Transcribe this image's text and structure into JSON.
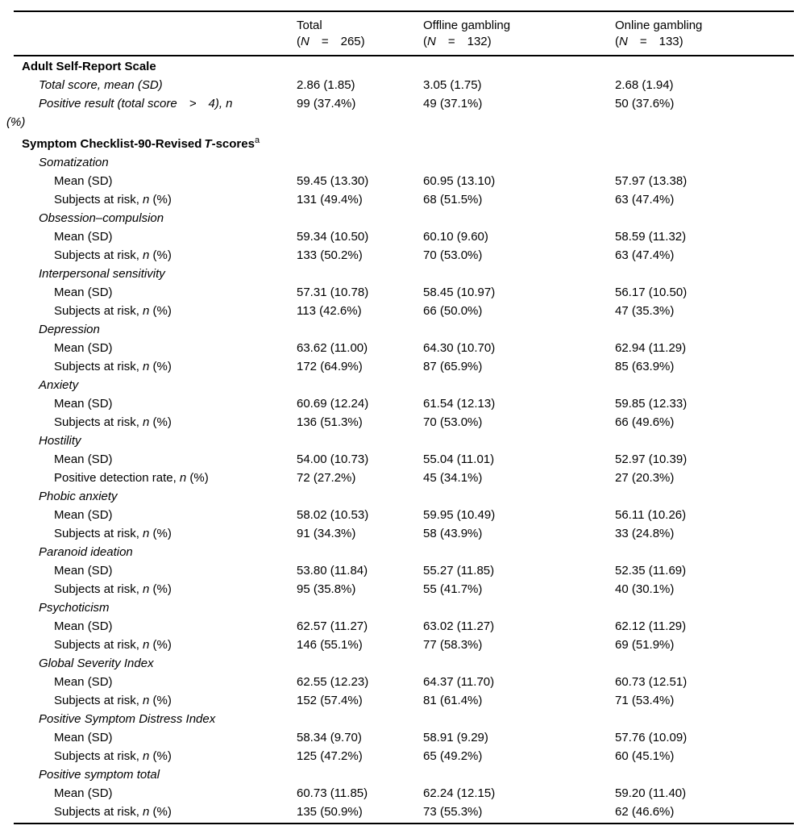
{
  "table": {
    "header": {
      "total": {
        "title": "Total",
        "open": "(",
        "n": "N",
        "rest": "  =  265)"
      },
      "offline": {
        "title": "Offline gambling",
        "open": "(",
        "n": "N",
        "rest": "  =  132)"
      },
      "online": {
        "title": "Online gambling",
        "open": "(",
        "n": "N",
        "rest": "  =  133)"
      }
    },
    "rows": [
      {
        "type": "section",
        "label": "Adult Self-Report Scale"
      },
      {
        "type": "sub",
        "label": "Total score, mean (SD)",
        "values": [
          "2.86 (1.85)",
          "3.05 (1.75)",
          "2.68 (1.94)"
        ]
      },
      {
        "type": "subwrap",
        "label": "Positive result (total score  >  4), n",
        "label2": "(%)",
        "values": [
          "99 (37.4%)",
          "49 (37.1%)",
          "50 (37.6%)"
        ]
      },
      {
        "type": "section2",
        "pre": "Symptom Checklist-90-Revised ",
        "t": "T",
        "post": "-scores",
        "sup": "a"
      },
      {
        "type": "sub",
        "label": "Somatization"
      },
      {
        "type": "leaf",
        "label": "Mean (SD)",
        "values": [
          "59.45 (13.30)",
          "60.95 (13.10)",
          "57.97 (13.38)"
        ]
      },
      {
        "type": "leafn",
        "pre": "Subjects at risk, ",
        "n": "n",
        "post": " (%)",
        "values": [
          "131 (49.4%)",
          "68 (51.5%)",
          "63 (47.4%)"
        ]
      },
      {
        "type": "sub",
        "label": "Obsession–compulsion"
      },
      {
        "type": "leaf",
        "label": "Mean (SD)",
        "values": [
          "59.34 (10.50)",
          "60.10 (9.60)",
          "58.59 (11.32)"
        ]
      },
      {
        "type": "leafn",
        "pre": "Subjects at risk, ",
        "n": "n",
        "post": " (%)",
        "values": [
          "133 (50.2%)",
          "70 (53.0%)",
          "63 (47.4%)"
        ]
      },
      {
        "type": "sub",
        "label": "Interpersonal sensitivity"
      },
      {
        "type": "leaf",
        "label": "Mean (SD)",
        "values": [
          "57.31 (10.78)",
          "58.45 (10.97)",
          "56.17 (10.50)"
        ]
      },
      {
        "type": "leafn",
        "pre": "Subjects at risk, ",
        "n": "n",
        "post": " (%)",
        "values": [
          "113 (42.6%)",
          "66 (50.0%)",
          "47 (35.3%)"
        ]
      },
      {
        "type": "sub",
        "label": "Depression"
      },
      {
        "type": "leaf",
        "label": "Mean (SD)",
        "values": [
          "63.62 (11.00)",
          "64.30 (10.70)",
          "62.94 (11.29)"
        ]
      },
      {
        "type": "leafn",
        "pre": "Subjects at risk, ",
        "n": "n",
        "post": " (%)",
        "values": [
          "172 (64.9%)",
          "87 (65.9%)",
          "85 (63.9%)"
        ]
      },
      {
        "type": "sub",
        "label": "Anxiety"
      },
      {
        "type": "leaf",
        "label": "Mean (SD)",
        "values": [
          "60.69 (12.24)",
          "61.54 (12.13)",
          "59.85 (12.33)"
        ]
      },
      {
        "type": "leafn",
        "pre": "Subjects at risk, ",
        "n": "n",
        "post": " (%)",
        "values": [
          "136 (51.3%)",
          "70 (53.0%)",
          "66 (49.6%)"
        ]
      },
      {
        "type": "sub",
        "label": "Hostility"
      },
      {
        "type": "leaf",
        "label": "Mean (SD)",
        "values": [
          "54.00 (10.73)",
          "55.04 (11.01)",
          "52.97 (10.39)"
        ]
      },
      {
        "type": "leafn",
        "pre": "Positive detection rate, ",
        "n": "n",
        "post": " (%)",
        "values": [
          "72 (27.2%)",
          "45 (34.1%)",
          "27 (20.3%)"
        ]
      },
      {
        "type": "sub",
        "label": "Phobic anxiety"
      },
      {
        "type": "leaf",
        "label": "Mean (SD)",
        "values": [
          "58.02 (10.53)",
          "59.95 (10.49)",
          "56.11 (10.26)"
        ]
      },
      {
        "type": "leafn",
        "pre": "Subjects at risk, ",
        "n": "n",
        "post": " (%)",
        "values": [
          "91 (34.3%)",
          "58 (43.9%)",
          "33 (24.8%)"
        ]
      },
      {
        "type": "sub",
        "label": "Paranoid ideation"
      },
      {
        "type": "leaf",
        "label": "Mean (SD)",
        "values": [
          "53.80 (11.84)",
          "55.27 (11.85)",
          "52.35 (11.69)"
        ]
      },
      {
        "type": "leafn",
        "pre": "Subjects at risk, ",
        "n": "n",
        "post": " (%)",
        "values": [
          "95 (35.8%)",
          "55 (41.7%)",
          "40 (30.1%)"
        ]
      },
      {
        "type": "sub",
        "label": "Psychoticism"
      },
      {
        "type": "leaf",
        "label": "Mean (SD)",
        "values": [
          "62.57 (11.27)",
          "63.02 (11.27)",
          "62.12 (11.29)"
        ]
      },
      {
        "type": "leafn",
        "pre": "Subjects at risk, ",
        "n": "n",
        "post": " (%)",
        "values": [
          "146 (55.1%)",
          "77 (58.3%)",
          "69 (51.9%)"
        ]
      },
      {
        "type": "sub",
        "label": "Global Severity Index"
      },
      {
        "type": "leaf",
        "label": "Mean (SD)",
        "values": [
          "62.55 (12.23)",
          "64.37 (11.70)",
          "60.73 (12.51)"
        ]
      },
      {
        "type": "leafn",
        "pre": "Subjects at risk, ",
        "n": "n",
        "post": " (%)",
        "values": [
          "152 (57.4%)",
          "81 (61.4%)",
          "71 (53.4%)"
        ]
      },
      {
        "type": "sub",
        "label": "Positive Symptom Distress Index"
      },
      {
        "type": "leaf",
        "label": "Mean (SD)",
        "values": [
          "58.34 (9.70)",
          "58.91 (9.29)",
          "57.76 (10.09)"
        ]
      },
      {
        "type": "leafn",
        "pre": "Subjects at risk, ",
        "n": "n",
        "post": " (%)",
        "values": [
          "125 (47.2%)",
          "65 (49.2%)",
          "60 (45.1%)"
        ]
      },
      {
        "type": "sub",
        "label": "Positive symptom total"
      },
      {
        "type": "leaf",
        "label": "Mean (SD)",
        "values": [
          "60.73 (11.85)",
          "62.24 (12.15)",
          "59.20 (11.40)"
        ]
      },
      {
        "type": "leafn",
        "pre": "Subjects at risk, ",
        "n": "n",
        "post": " (%)",
        "values": [
          "135 (50.9%)",
          "73 (55.3%)",
          "62 (46.6%)"
        ]
      }
    ]
  }
}
